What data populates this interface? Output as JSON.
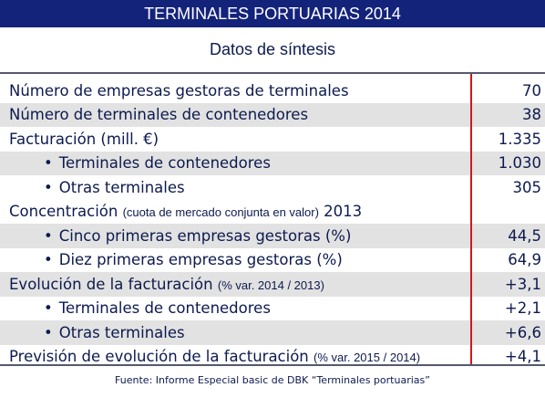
{
  "title": "TERMINALES PORTUARIAS 2014",
  "subtitle": "Datos de síntesis",
  "bullet_glyph": "•",
  "rows": [
    {
      "label": "Número de empresas gestoras de terminales",
      "note": "",
      "suffix": "",
      "value": "70",
      "indent": false,
      "shaded": false
    },
    {
      "label": "Número de terminales de contenedores",
      "note": "",
      "suffix": "",
      "value": "38",
      "indent": false,
      "shaded": true
    },
    {
      "label": "Facturación (mill. €)",
      "note": "",
      "suffix": "",
      "value": "1.335",
      "indent": false,
      "shaded": false
    },
    {
      "label": "Terminales de contenedores",
      "note": "",
      "suffix": "",
      "value": "1.030",
      "indent": true,
      "shaded": true
    },
    {
      "label": "Otras terminales",
      "note": "",
      "suffix": "",
      "value": "305",
      "indent": true,
      "shaded": false
    },
    {
      "label": "Concentración ",
      "note": "(cuota de mercado conjunta en valor)",
      "suffix": " 2013",
      "value": "",
      "indent": false,
      "shaded": false
    },
    {
      "label": "Cinco primeras empresas gestoras (%)",
      "note": "",
      "suffix": "",
      "value": "44,5",
      "indent": true,
      "shaded": true
    },
    {
      "label": "Diez primeras empresas gestoras (%)",
      "note": "",
      "suffix": "",
      "value": "64,9",
      "indent": true,
      "shaded": false
    },
    {
      "label": "Evolución de la facturación ",
      "note": "(% var. 2014 / 2013)",
      "suffix": "",
      "value": "+3,1",
      "indent": false,
      "shaded": true
    },
    {
      "label": "Terminales de contenedores",
      "note": "",
      "suffix": "",
      "value": "+2,1",
      "indent": true,
      "shaded": false
    },
    {
      "label": "Otras terminales",
      "note": "",
      "suffix": "",
      "value": "+6,6",
      "indent": true,
      "shaded": true
    },
    {
      "label": "Previsión de evolución de la facturación ",
      "note": "(% var. 2015 / 2014)",
      "suffix": "",
      "value": "+4,1",
      "indent": false,
      "shaded": false
    }
  ],
  "source": "Fuente: Informe Especial basic de DBK “Terminales portuarias”"
}
